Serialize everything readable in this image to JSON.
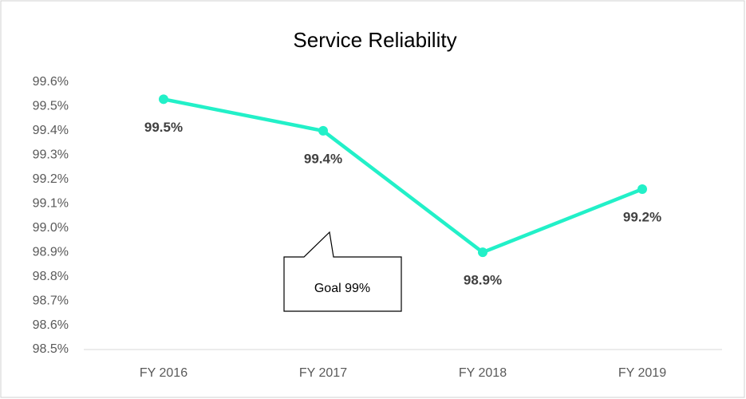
{
  "chart_data": {
    "type": "line",
    "title": "Service Reliability",
    "categories": [
      "FY 2016",
      "FY 2017",
      "FY 2018",
      "FY 2019"
    ],
    "values": [
      99.53,
      99.4,
      98.9,
      99.16
    ],
    "value_labels": [
      "99.5%",
      "99.4%",
      "98.9%",
      "99.2%"
    ],
    "color": "#22f0c8",
    "ylim": [
      98.5,
      99.6
    ],
    "yticks": [
      {
        "value": 98.5,
        "label": "98.5%"
      },
      {
        "value": 98.6,
        "label": "98.6%"
      },
      {
        "value": 98.7,
        "label": "98.7%"
      },
      {
        "value": 98.8,
        "label": "98.8%"
      },
      {
        "value": 98.9,
        "label": "98.9%"
      },
      {
        "value": 99.0,
        "label": "99.0%"
      },
      {
        "value": 99.1,
        "label": "99.1%"
      },
      {
        "value": 99.2,
        "label": "99.2%"
      },
      {
        "value": 99.3,
        "label": "99.3%"
      },
      {
        "value": 99.4,
        "label": "99.4%"
      },
      {
        "value": 99.5,
        "label": "99.5%"
      },
      {
        "value": 99.6,
        "label": "99.6%"
      }
    ],
    "grid": false,
    "annotation": "Goal 99%"
  }
}
